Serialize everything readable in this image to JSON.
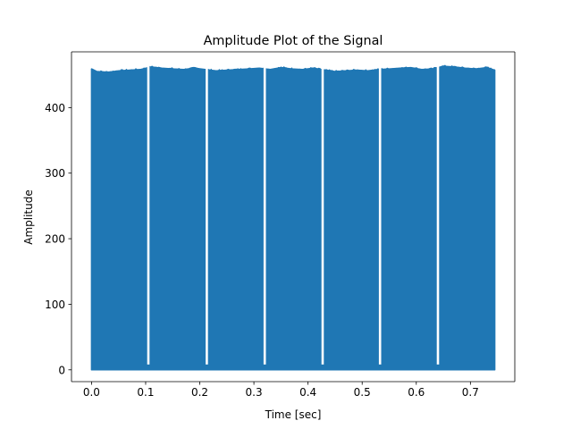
{
  "chart_data": {
    "type": "line",
    "title": "Amplitude Plot of the Signal",
    "xlabel": "Time [sec]",
    "ylabel": "Amplitude",
    "xlim": [
      -0.037,
      0.782
    ],
    "ylim": [
      -18,
      485
    ],
    "xticks": [
      0.0,
      0.1,
      0.2,
      0.3,
      0.4,
      0.5,
      0.6,
      0.7
    ],
    "xtick_labels": [
      "0.0",
      "0.1",
      "0.2",
      "0.3",
      "0.4",
      "0.5",
      "0.6",
      "0.7"
    ],
    "yticks": [
      0,
      100,
      200,
      300,
      400
    ],
    "ytick_labels": [
      "0",
      "100",
      "200",
      "300",
      "400"
    ],
    "grid": false,
    "series": [
      {
        "color": "#1f77b4",
        "x_range": [
          0.0,
          0.745
        ],
        "baseline": 0,
        "typical_peak": 457,
        "max_peak": 466,
        "envelope_x": [
          0.0,
          0.01,
          0.03,
          0.05,
          0.07,
          0.09,
          0.11,
          0.13,
          0.15,
          0.17,
          0.19,
          0.21,
          0.23,
          0.25,
          0.27,
          0.29,
          0.31,
          0.33,
          0.35,
          0.37,
          0.39,
          0.41,
          0.43,
          0.45,
          0.47,
          0.49,
          0.51,
          0.53,
          0.55,
          0.57,
          0.59,
          0.61,
          0.63,
          0.65,
          0.67,
          0.69,
          0.71,
          0.73,
          0.745
        ],
        "envelope_y": [
          459,
          455,
          454,
          456,
          457,
          458,
          462,
          460,
          459,
          458,
          460,
          458,
          456,
          457,
          458,
          459,
          460,
          458,
          461,
          459,
          458,
          460,
          457,
          455,
          456,
          457,
          456,
          458,
          459,
          460,
          461,
          458,
          459,
          463,
          462,
          460,
          459,
          461,
          457
        ],
        "gaps_x": [
          0.105,
          0.213,
          0.32,
          0.427,
          0.533,
          0.64
        ]
      }
    ]
  }
}
